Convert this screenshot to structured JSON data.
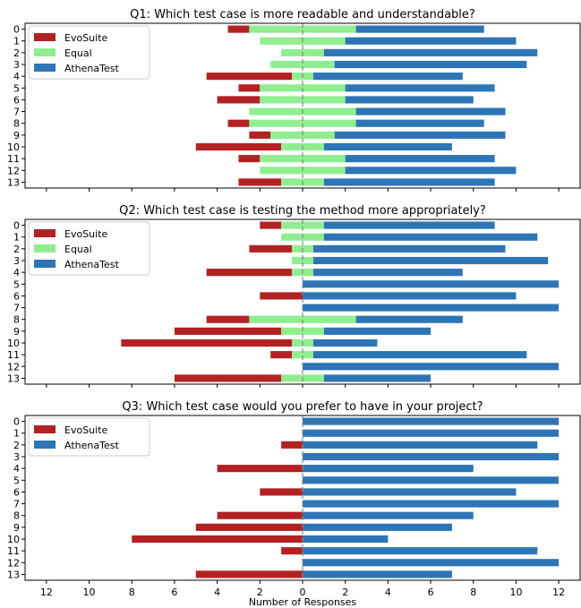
{
  "chart_data": [
    {
      "type": "bar",
      "orientation": "horizontal-diverging",
      "title": "Q1: Which test case is more readable and understandable?",
      "categories": [
        "0",
        "1",
        "2",
        "3",
        "4",
        "5",
        "6",
        "7",
        "8",
        "9",
        "10",
        "11",
        "12",
        "13"
      ],
      "legend": [
        "EvoSuite",
        "Equal",
        "AthenaTest"
      ],
      "legend_position": "top-left",
      "series": [
        {
          "name": "EvoSuite",
          "color": "#b22222",
          "values": [
            1,
            0,
            0,
            0,
            4,
            1,
            2,
            0,
            1,
            1,
            4,
            1,
            0,
            2
          ]
        },
        {
          "name": "Equal",
          "color": "#90ee90",
          "values": [
            5,
            4,
            2,
            3,
            1,
            4,
            4,
            5,
            5,
            3,
            2,
            4,
            4,
            2
          ]
        },
        {
          "name": "AthenaTest",
          "color": "#2e75b6",
          "values": [
            6,
            8,
            10,
            9,
            7,
            7,
            6,
            7,
            6,
            8,
            6,
            7,
            8,
            8
          ]
        }
      ],
      "xlim": [
        -13,
        13
      ],
      "grid": false
    },
    {
      "type": "bar",
      "orientation": "horizontal-diverging",
      "title": "Q2: Which test case is testing the method more appropriately?",
      "categories": [
        "0",
        "1",
        "2",
        "3",
        "4",
        "5",
        "6",
        "7",
        "8",
        "9",
        "10",
        "11",
        "12",
        "13"
      ],
      "legend": [
        "EvoSuite",
        "Equal",
        "AthenaTest"
      ],
      "legend_position": "top-left",
      "series": [
        {
          "name": "EvoSuite",
          "color": "#b22222",
          "values": [
            1,
            0,
            2,
            0,
            4,
            0,
            2,
            0,
            2,
            5,
            8,
            1,
            0,
            5
          ]
        },
        {
          "name": "Equal",
          "color": "#90ee90",
          "values": [
            2,
            2,
            1,
            1,
            1,
            0,
            0,
            0,
            5,
            2,
            1,
            1,
            0,
            2
          ]
        },
        {
          "name": "AthenaTest",
          "color": "#2e75b6",
          "values": [
            8,
            10,
            9,
            11,
            7,
            12,
            10,
            12,
            5,
            5,
            3,
            10,
            12,
            5
          ]
        }
      ],
      "xlim": [
        -13,
        13
      ],
      "grid": false
    },
    {
      "type": "bar",
      "orientation": "horizontal-diverging",
      "title": "Q3: Which test case would you prefer to have in your project?",
      "categories": [
        "0",
        "1",
        "2",
        "3",
        "4",
        "5",
        "6",
        "7",
        "8",
        "9",
        "10",
        "11",
        "12",
        "13"
      ],
      "legend": [
        "EvoSuite",
        "AthenaTest"
      ],
      "legend_position": "top-left",
      "series": [
        {
          "name": "EvoSuite",
          "color": "#b22222",
          "values": [
            0,
            0,
            1,
            0,
            4,
            0,
            2,
            0,
            4,
            5,
            8,
            1,
            0,
            5
          ]
        },
        {
          "name": "AthenaTest",
          "color": "#2e75b6",
          "values": [
            12,
            12,
            11,
            12,
            8,
            12,
            10,
            12,
            8,
            7,
            4,
            11,
            12,
            7
          ]
        }
      ],
      "xlim": [
        -13,
        13
      ],
      "xticks": [
        "12",
        "10",
        "8",
        "6",
        "4",
        "2",
        "0",
        "2",
        "4",
        "6",
        "8",
        "10",
        "12"
      ],
      "xlabel": "Number of Responses",
      "grid": false
    }
  ]
}
